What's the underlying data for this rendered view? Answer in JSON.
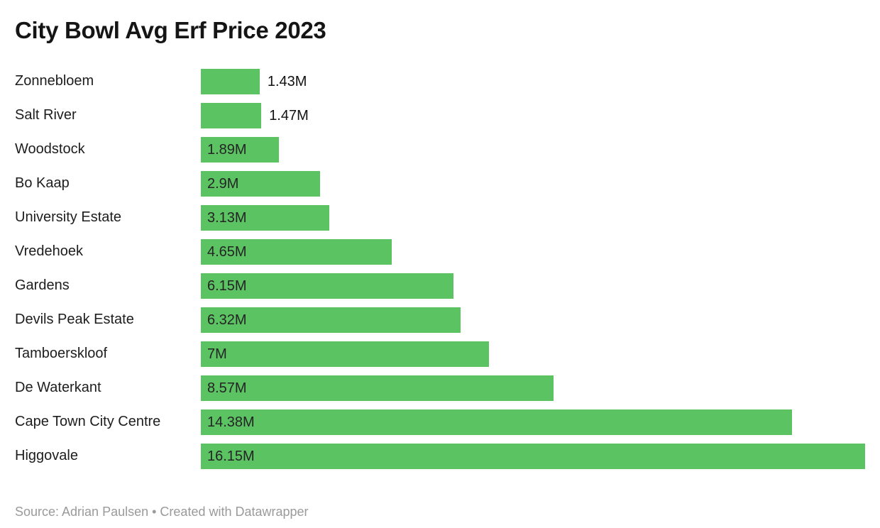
{
  "title": "City Bowl Avg Erf Price 2023",
  "footer": {
    "text": "Source: Adrian Paulsen • Created with Datawrapper"
  },
  "chart_data": {
    "type": "bar",
    "orientation": "horizontal",
    "title": "City Bowl Avg Erf Price 2023",
    "xlabel": "",
    "ylabel": "",
    "xlim": [
      0,
      16.15
    ],
    "grid": false,
    "legend": false,
    "bar_color": "#5cc363",
    "categories": [
      "Zonnebloem",
      "Salt River",
      "Woodstock",
      "Bo Kaap",
      "University Estate",
      "Vredehoek",
      "Gardens",
      "Devils Peak Estate",
      "Tamboerskloof",
      "De Waterkant",
      "Cape Town City Centre",
      "Higgovale"
    ],
    "values": [
      1.43,
      1.47,
      1.89,
      2.9,
      3.13,
      4.65,
      6.15,
      6.32,
      7,
      8.57,
      14.38,
      16.15
    ],
    "value_labels": [
      "1.43M",
      "1.47M",
      "1.89M",
      "2.9M",
      "3.13M",
      "4.65M",
      "6.15M",
      "6.32M",
      "7M",
      "8.57M",
      "14.38M",
      "16.15M"
    ]
  }
}
